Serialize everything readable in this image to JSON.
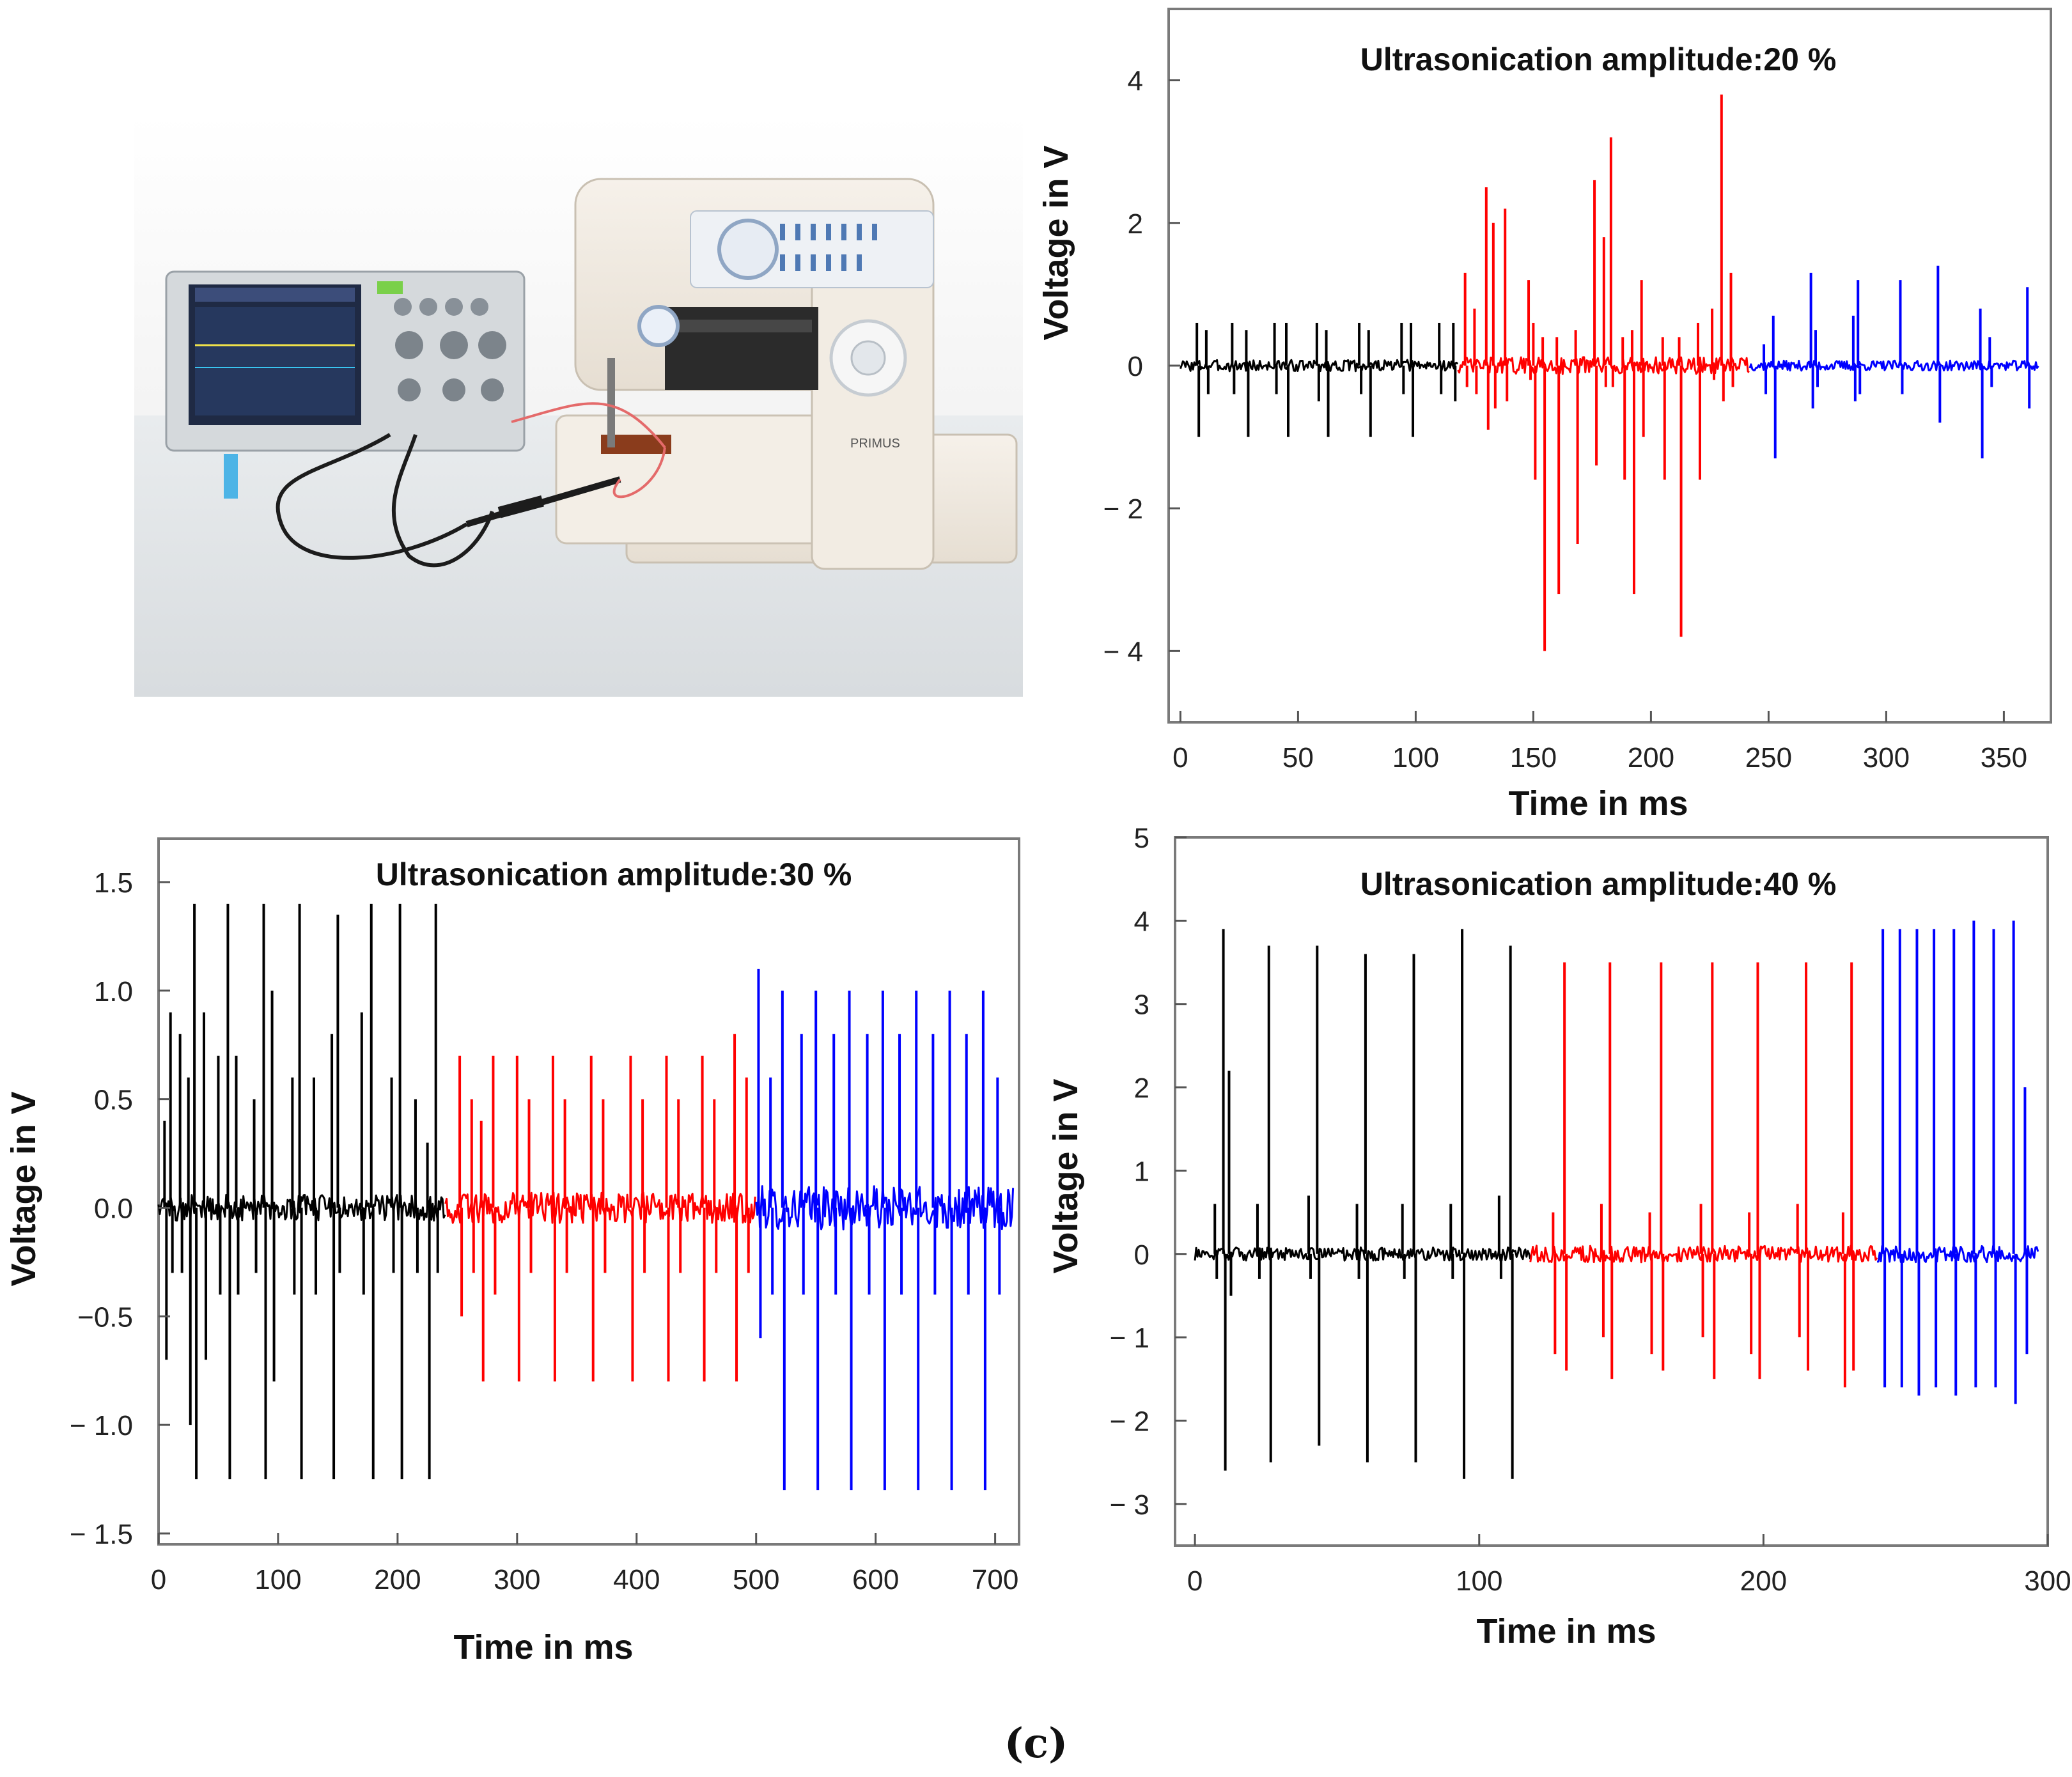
{
  "figure": {
    "caption": "(c)",
    "photo_description": "",
    "photo_label": "PRIMUS"
  },
  "chart_data": [
    {
      "type": "line",
      "title": "Ultrasonication amplitude:20 %",
      "xlabel": "Time in ms",
      "ylabel": "Voltage in V",
      "xlim": [
        -5,
        370
      ],
      "ylim": [
        -5.0,
        5.0
      ],
      "xticks": [
        0,
        50,
        100,
        150,
        200,
        250,
        300,
        350
      ],
      "xtick_labels": [
        "0",
        "50",
        "100",
        "150",
        "200",
        "250",
        "300",
        "350"
      ],
      "yticks": [
        -4,
        -2,
        0,
        2,
        4
      ],
      "ytick_labels": [
        "− 4",
        "− 2",
        "0",
        "2",
        "4"
      ],
      "series": [
        {
          "name": "black",
          "color": "#000000",
          "x_range": [
            0,
            118
          ],
          "spikes": [
            [
              7,
              0.6,
              -1.0
            ],
            [
              11,
              0.5,
              -0.4
            ],
            [
              22,
              0.6,
              -0.4
            ],
            [
              28,
              0.5,
              -1.0
            ],
            [
              40,
              0.6,
              -0.4
            ],
            [
              45,
              0.6,
              -1.0
            ],
            [
              58,
              0.6,
              -0.5
            ],
            [
              62,
              0.5,
              -1.0
            ],
            [
              76,
              0.6,
              -0.4
            ],
            [
              80,
              0.5,
              -1.0
            ],
            [
              94,
              0.6,
              -0.4
            ],
            [
              98,
              0.6,
              -1.0
            ],
            [
              110,
              0.6,
              -0.4
            ],
            [
              116,
              0.6,
              -0.5
            ]
          ],
          "noise": 0.08
        },
        {
          "name": "red",
          "color": "#ff0000",
          "x_range": [
            118,
            242
          ],
          "spikes": [
            [
              121,
              1.3,
              -0.3
            ],
            [
              125,
              0.8,
              -0.4
            ],
            [
              130,
              2.5,
              -0.9
            ],
            [
              133,
              2.0,
              -0.6
            ],
            [
              138,
              2.2,
              -0.5
            ],
            [
              148,
              1.2,
              -0.2
            ],
            [
              150,
              0.6,
              -1.6
            ],
            [
              154,
              0.4,
              -4.0
            ],
            [
              160,
              0.4,
              -3.2
            ],
            [
              168,
              0.5,
              -2.5
            ],
            [
              176,
              2.6,
              -1.4
            ],
            [
              180,
              1.8,
              -0.3
            ],
            [
              183,
              3.2,
              -0.3
            ],
            [
              188,
              0.4,
              -1.6
            ],
            [
              192,
              0.5,
              -3.2
            ],
            [
              196,
              1.2,
              -1.0
            ],
            [
              205,
              0.4,
              -1.6
            ],
            [
              212,
              0.4,
              -3.8
            ],
            [
              220,
              0.6,
              -1.6
            ],
            [
              226,
              0.8,
              -0.2
            ],
            [
              230,
              3.8,
              -0.5
            ],
            [
              234,
              1.3,
              -0.3
            ]
          ],
          "noise": 0.12
        },
        {
          "name": "blue",
          "color": "#0000ff",
          "x_range": [
            242,
            365
          ],
          "spikes": [
            [
              248,
              0.3,
              -0.4
            ],
            [
              252,
              0.7,
              -1.3
            ],
            [
              268,
              1.3,
              -0.6
            ],
            [
              270,
              0.5,
              -0.3
            ],
            [
              286,
              0.7,
              -0.5
            ],
            [
              288,
              1.2,
              -0.4
            ],
            [
              306,
              1.2,
              -0.4
            ],
            [
              322,
              1.4,
              -0.8
            ],
            [
              340,
              0.8,
              -1.3
            ],
            [
              344,
              0.4,
              -0.3
            ],
            [
              360,
              1.1,
              -0.6
            ]
          ],
          "noise": 0.07
        }
      ]
    },
    {
      "type": "line",
      "title": "Ultrasonication amplitude:30 %",
      "xlabel": "Time in ms",
      "ylabel": "Voltage in V",
      "xlim": [
        0,
        720
      ],
      "ylim": [
        -1.55,
        1.7
      ],
      "xticks": [
        0,
        100,
        200,
        300,
        400,
        500,
        600,
        700
      ],
      "xtick_labels": [
        "0",
        "100",
        "200",
        "300",
        "400",
        "500",
        "600",
        "700"
      ],
      "yticks": [
        -1.5,
        -1.0,
        -0.5,
        0.0,
        0.5,
        1.0,
        1.5
      ],
      "ytick_labels": [
        "− 1.5",
        "− 1.0",
        "−0.5",
        "0.0",
        "0.5",
        "1.0",
        "1.5"
      ],
      "series": [
        {
          "name": "black",
          "color": "#000000",
          "x_range": [
            0,
            240
          ],
          "spikes": [
            [
              5,
              0.4,
              -0.7
            ],
            [
              10,
              0.9,
              -0.3
            ],
            [
              18,
              0.8,
              -0.3
            ],
            [
              25,
              0.6,
              -1.0
            ],
            [
              30,
              1.4,
              -1.25
            ],
            [
              38,
              0.9,
              -0.7
            ],
            [
              50,
              0.7,
              -0.4
            ],
            [
              58,
              1.4,
              -1.25
            ],
            [
              65,
              0.7,
              -0.4
            ],
            [
              80,
              0.5,
              -0.3
            ],
            [
              88,
              1.4,
              -1.25
            ],
            [
              95,
              1.0,
              -0.8
            ],
            [
              112,
              0.6,
              -0.4
            ],
            [
              118,
              1.4,
              -1.25
            ],
            [
              130,
              0.6,
              -0.4
            ],
            [
              145,
              0.8,
              -1.25
            ],
            [
              150,
              1.35,
              -0.3
            ],
            [
              170,
              0.9,
              -0.4
            ],
            [
              178,
              1.4,
              -1.25
            ],
            [
              195,
              0.6,
              -0.3
            ],
            [
              202,
              1.4,
              -1.25
            ],
            [
              215,
              0.5,
              -0.3
            ],
            [
              225,
              0.3,
              -1.25
            ],
            [
              232,
              1.4,
              -0.3
            ]
          ],
          "noise": 0.06
        },
        {
          "name": "red",
          "color": "#ff0000",
          "x_range": [
            240,
            500
          ],
          "spikes": [
            [
              252,
              0.7,
              -0.5
            ],
            [
              262,
              0.5,
              -0.3
            ],
            [
              270,
              0.4,
              -0.8
            ],
            [
              280,
              0.7,
              -0.4
            ],
            [
              300,
              0.7,
              -0.8
            ],
            [
              310,
              0.5,
              -0.3
            ],
            [
              330,
              0.7,
              -0.8
            ],
            [
              340,
              0.5,
              -0.3
            ],
            [
              362,
              0.7,
              -0.8
            ],
            [
              372,
              0.5,
              -0.3
            ],
            [
              395,
              0.7,
              -0.8
            ],
            [
              405,
              0.5,
              -0.3
            ],
            [
              425,
              0.7,
              -0.8
            ],
            [
              435,
              0.5,
              -0.3
            ],
            [
              455,
              0.7,
              -0.8
            ],
            [
              465,
              0.5,
              -0.3
            ],
            [
              482,
              0.8,
              -0.8
            ],
            [
              492,
              0.6,
              -0.3
            ]
          ],
          "noise": 0.07
        },
        {
          "name": "blue",
          "color": "#0000ff",
          "x_range": [
            500,
            715
          ],
          "spikes": [
            [
              502,
              1.1,
              -0.6
            ],
            [
              512,
              0.6,
              -0.4
            ],
            [
              522,
              1.0,
              -1.3
            ],
            [
              538,
              0.8,
              -0.4
            ],
            [
              550,
              1.0,
              -1.3
            ],
            [
              565,
              0.8,
              -0.4
            ],
            [
              578,
              1.0,
              -1.3
            ],
            [
              593,
              0.8,
              -0.4
            ],
            [
              606,
              1.0,
              -1.3
            ],
            [
              620,
              0.8,
              -0.4
            ],
            [
              634,
              1.0,
              -1.3
            ],
            [
              648,
              0.8,
              -0.4
            ],
            [
              662,
              1.0,
              -1.3
            ],
            [
              676,
              0.8,
              -0.4
            ],
            [
              690,
              1.0,
              -1.3
            ],
            [
              702,
              0.6,
              -0.4
            ]
          ],
          "noise": 0.1
        }
      ]
    },
    {
      "type": "line",
      "title": "Ultrasonication amplitude:40 %",
      "xlabel": "Time in ms",
      "ylabel": "Voltage in V",
      "xlim": [
        -7,
        300
      ],
      "ylim": [
        -3.5,
        5.0
      ],
      "xticks": [
        0,
        100,
        200,
        300
      ],
      "xtick_labels": [
        "0",
        "100",
        "200",
        "300"
      ],
      "yticks": [
        -3,
        -2,
        -1,
        0,
        1,
        2,
        3,
        4,
        5
      ],
      "ytick_labels": [
        "− 3",
        "− 2",
        "− 1",
        "0",
        "1",
        "2",
        "3",
        "4",
        "5"
      ],
      "series": [
        {
          "name": "black",
          "color": "#000000",
          "x_range": [
            0,
            118
          ],
          "spikes": [
            [
              7,
              0.6,
              -0.3
            ],
            [
              10,
              3.9,
              -2.6
            ],
            [
              12,
              2.2,
              -0.5
            ],
            [
              22,
              0.6,
              -0.3
            ],
            [
              26,
              3.7,
              -2.5
            ],
            [
              40,
              0.7,
              -0.3
            ],
            [
              43,
              3.7,
              -2.3
            ],
            [
              57,
              0.6,
              -0.3
            ],
            [
              60,
              3.6,
              -2.5
            ],
            [
              73,
              0.6,
              -0.3
            ],
            [
              77,
              3.6,
              -2.5
            ],
            [
              90,
              0.6,
              -0.3
            ],
            [
              94,
              3.9,
              -2.7
            ],
            [
              107,
              0.7,
              -0.3
            ],
            [
              111,
              3.7,
              -2.7
            ]
          ],
          "noise": 0.08
        },
        {
          "name": "red",
          "color": "#ff0000",
          "x_range": [
            118,
            240
          ],
          "spikes": [
            [
              126,
              0.5,
              -1.2
            ],
            [
              130,
              3.5,
              -1.4
            ],
            [
              143,
              0.6,
              -1.0
            ],
            [
              146,
              3.5,
              -1.5
            ],
            [
              160,
              0.5,
              -1.2
            ],
            [
              164,
              3.5,
              -1.4
            ],
            [
              178,
              0.6,
              -1.0
            ],
            [
              182,
              3.5,
              -1.5
            ],
            [
              195,
              0.5,
              -1.2
            ],
            [
              198,
              3.5,
              -1.5
            ],
            [
              212,
              0.6,
              -1.0
            ],
            [
              215,
              3.5,
              -1.4
            ],
            [
              228,
              0.5,
              -1.6
            ],
            [
              231,
              3.5,
              -1.4
            ]
          ],
          "noise": 0.1
        },
        {
          "name": "blue",
          "color": "#0000ff",
          "x_range": [
            240,
            297
          ],
          "spikes": [
            [
              242,
              3.9,
              -1.6
            ],
            [
              248,
              3.9,
              -1.6
            ],
            [
              254,
              3.9,
              -1.7
            ],
            [
              260,
              3.9,
              -1.6
            ],
            [
              267,
              3.9,
              -1.7
            ],
            [
              274,
              4.0,
              -1.6
            ],
            [
              281,
              3.9,
              -1.6
            ],
            [
              288,
              4.0,
              -1.8
            ],
            [
              292,
              2.0,
              -1.2
            ]
          ],
          "noise": 0.1
        }
      ]
    }
  ]
}
